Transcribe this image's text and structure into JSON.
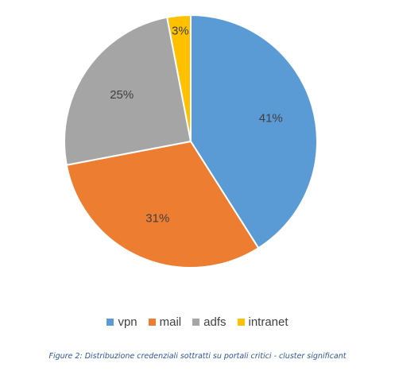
{
  "chart_data": {
    "type": "pie",
    "categories": [
      "vpn",
      "mail",
      "adfs",
      "intranet"
    ],
    "values": [
      41,
      31,
      25,
      3
    ],
    "labels": [
      "41%",
      "31%",
      "25%",
      "3%"
    ],
    "colors": [
      "#5b9bd5",
      "#ed7d31",
      "#a5a5a5",
      "#ffc000"
    ],
    "legend_position": "bottom"
  },
  "caption": "Figure 2: Distribuzione credenziali sottratti su portali critici - cluster significant"
}
